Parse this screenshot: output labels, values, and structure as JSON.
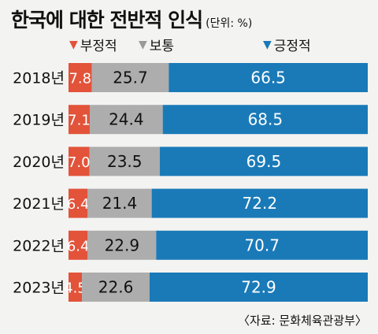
{
  "title": "한국에 대한 전반적 인식",
  "unit": "(단위: %)",
  "source": "〈자료: 문화체육관광부〉",
  "legend": [
    {
      "label": "부정적",
      "symbol": "▼",
      "color": "#e2533a"
    },
    {
      "label": "보통",
      "symbol": "▼",
      "color": "#adadad"
    },
    {
      "label": "긍정적",
      "symbol": "▼",
      "color": "#1a7ab8"
    }
  ],
  "chart_data": {
    "type": "bar",
    "orientation": "horizontal",
    "stacked": true,
    "categories": [
      "2018년",
      "2019년",
      "2020년",
      "2021년",
      "2022년",
      "2023년"
    ],
    "series": [
      {
        "name": "부정적",
        "color": "#e2533a",
        "values": [
          7.8,
          7.1,
          7.0,
          6.4,
          6.4,
          4.5
        ]
      },
      {
        "name": "보통",
        "color": "#adadad",
        "values": [
          25.7,
          24.4,
          23.5,
          21.4,
          22.9,
          22.6
        ]
      },
      {
        "name": "긍정적",
        "color": "#1a7ab8",
        "values": [
          66.5,
          68.5,
          69.5,
          72.2,
          70.7,
          72.9
        ]
      }
    ],
    "xlim": [
      0,
      100
    ]
  }
}
